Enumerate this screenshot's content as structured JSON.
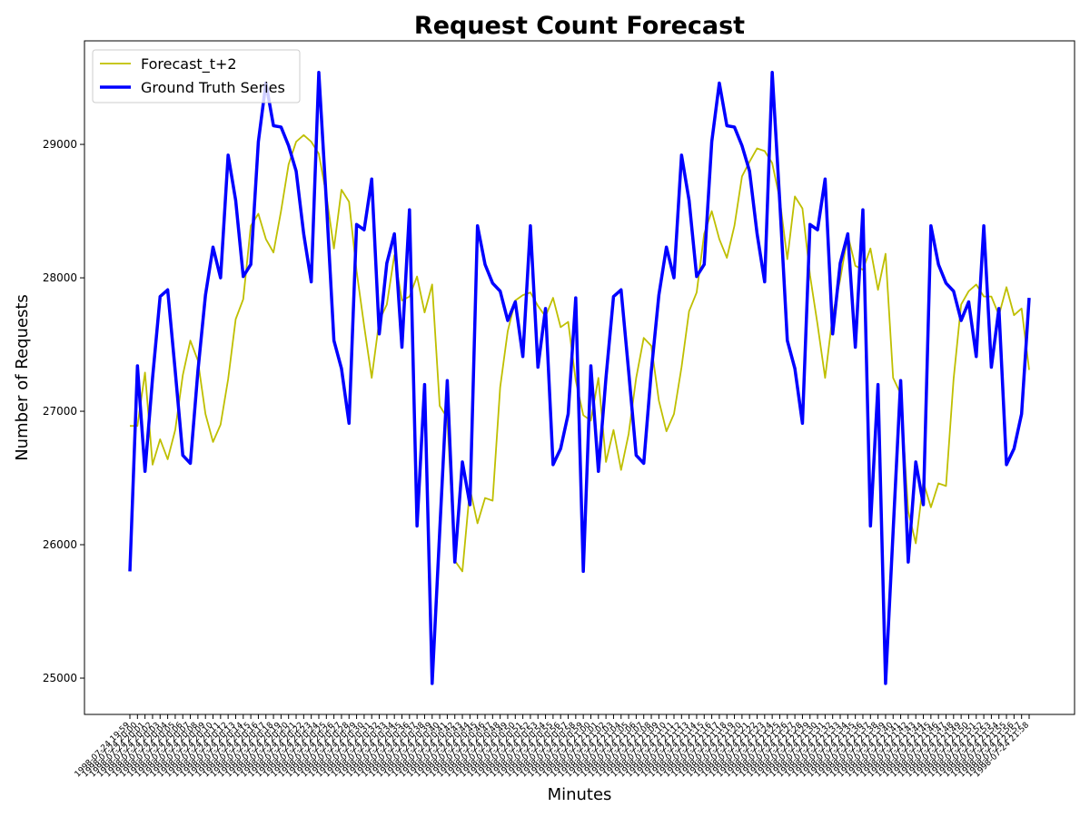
{
  "chart_data": {
    "type": "line",
    "title": "Request Count Forecast",
    "xlabel": "Minutes",
    "ylabel": "Number of Requests",
    "categories": [
      "1998-07-24 19:59",
      "1998-07-24 20:00",
      "1998-07-24 20:01",
      "1998-07-24 20:02",
      "1998-07-24 20:03",
      "1998-07-24 20:04",
      "1998-07-24 20:05",
      "1998-07-24 20:06",
      "1998-07-24 20:07",
      "1998-07-24 20:08",
      "1998-07-24 20:09",
      "1998-07-24 20:10",
      "1998-07-24 20:11",
      "1998-07-24 20:12",
      "1998-07-24 20:13",
      "1998-07-24 20:14",
      "1998-07-24 20:15",
      "1998-07-24 20:16",
      "1998-07-24 20:17",
      "1998-07-24 20:18",
      "1998-07-24 20:19",
      "1998-07-24 20:20",
      "1998-07-24 20:21",
      "1998-07-24 20:22",
      "1998-07-24 20:23",
      "1998-07-24 20:24",
      "1998-07-24 20:25",
      "1998-07-24 20:26",
      "1998-07-24 20:27",
      "1998-07-24 20:28",
      "1998-07-24 20:29",
      "1998-07-24 20:30",
      "1998-07-24 20:31",
      "1998-07-24 20:32",
      "1998-07-24 20:33",
      "1998-07-24 20:34",
      "1998-07-24 20:35",
      "1998-07-24 20:36",
      "1998-07-24 20:37",
      "1998-07-24 20:38",
      "1998-07-24 20:39",
      "1998-07-24 20:40",
      "1998-07-24 20:41",
      "1998-07-24 20:42",
      "1998-07-24 20:43",
      "1998-07-24 20:44",
      "1998-07-24 20:45",
      "1998-07-24 20:46",
      "1998-07-24 20:47",
      "1998-07-24 20:48",
      "1998-07-24 20:49",
      "1998-07-24 20:50",
      "1998-07-24 20:51",
      "1998-07-24 20:52",
      "1998-07-24 20:53",
      "1998-07-24 20:54",
      "1998-07-24 20:55",
      "1998-07-24 20:56",
      "1998-07-24 20:57",
      "1998-07-24 20:58",
      "1998-07-24 20:59",
      "1998-07-24 21:00",
      "1998-07-24 21:01",
      "1998-07-24 21:02",
      "1998-07-24 21:03",
      "1998-07-24 21:04",
      "1998-07-24 21:05",
      "1998-07-24 21:06",
      "1998-07-24 21:07",
      "1998-07-24 21:08",
      "1998-07-24 21:09",
      "1998-07-24 21:10",
      "1998-07-24 21:11",
      "1998-07-24 21:12",
      "1998-07-24 21:13",
      "1998-07-24 21:14",
      "1998-07-24 21:15",
      "1998-07-24 21:16",
      "1998-07-24 21:17",
      "1998-07-24 21:18",
      "1998-07-24 21:19",
      "1998-07-24 21:20",
      "1998-07-24 21:21",
      "1998-07-24 21:22",
      "1998-07-24 21:23",
      "1998-07-24 21:24",
      "1998-07-24 21:25",
      "1998-07-24 21:26",
      "1998-07-24 21:27",
      "1998-07-24 21:28",
      "1998-07-24 21:29",
      "1998-07-24 21:30",
      "1998-07-24 21:31",
      "1998-07-24 21:32",
      "1998-07-24 21:33",
      "1998-07-24 21:34",
      "1998-07-24 21:35",
      "1998-07-24 21:36",
      "1998-07-24 21:37",
      "1998-07-24 21:38",
      "1998-07-24 21:39",
      "1998-07-24 21:40",
      "1998-07-24 21:41",
      "1998-07-24 21:42",
      "1998-07-24 21:43",
      "1998-07-24 21:44",
      "1998-07-24 21:45",
      "1998-07-24 21:46",
      "1998-07-24 21:47",
      "1998-07-24 21:48",
      "1998-07-24 21:49",
      "1998-07-24 21:50",
      "1998-07-24 21:51",
      "1998-07-24 21:52",
      "1998-07-24 21:53",
      "1998-07-24 21:54",
      "1998-07-24 21:55",
      "1998-07-24 21:56",
      "1998-07-24 21:57",
      "1998-07-24 21:58"
    ],
    "series": [
      {
        "name": "Forecast_t+2",
        "color": "#bfbf00",
        "width": 1.8,
        "values": [
          26890,
          26890,
          27290,
          26600,
          26790,
          26640,
          26860,
          27270,
          27530,
          27380,
          26980,
          26770,
          26900,
          27240,
          27690,
          27840,
          28390,
          28480,
          28290,
          28190,
          28500,
          28850,
          29020,
          29070,
          29020,
          28930,
          28620,
          28220,
          28660,
          28570,
          28050,
          27640,
          27250,
          27680,
          27800,
          28170,
          27830,
          27860,
          28010,
          27740,
          27950,
          27040,
          26950,
          25880,
          25800,
          26420,
          26160,
          26350,
          26330,
          27180,
          27600,
          27830,
          27870,
          27890,
          27790,
          27710,
          27850,
          27630,
          27670,
          27230,
          26970,
          26930,
          27250,
          26620,
          26860,
          26560,
          26830,
          27250,
          27550,
          27490,
          27080,
          26850,
          26980,
          27330,
          27750,
          27890,
          28330,
          28500,
          28290,
          28150,
          28390,
          28760,
          28870,
          28970,
          28950,
          28860,
          28590,
          28140,
          28610,
          28520,
          28020,
          27650,
          27250,
          27720,
          27990,
          28320,
          28090,
          28060,
          28220,
          27910,
          28180,
          27250,
          27130,
          26250,
          26010,
          26470,
          26280,
          26460,
          26440,
          27240,
          27800,
          27900,
          27950,
          27860,
          27860,
          27720,
          27930,
          27720,
          27770,
          27310
        ]
      },
      {
        "name": "Ground Truth Series",
        "color": "#0000ff",
        "width": 3.5,
        "values": [
          25800,
          27340,
          26550,
          27250,
          27860,
          27910,
          27300,
          26670,
          26610,
          27300,
          27870,
          28230,
          28000,
          28920,
          28580,
          28010,
          28100,
          29020,
          29460,
          29140,
          29130,
          28990,
          28800,
          28330,
          27970,
          29540,
          28570,
          27530,
          27320,
          26910,
          28400,
          28360,
          28740,
          27580,
          28110,
          28330,
          27480,
          28510,
          26140,
          27200,
          24960,
          26100,
          27230,
          25870,
          26620,
          26300,
          28390,
          28100,
          27960,
          27900,
          27680,
          27820,
          27410,
          28390,
          27330,
          27770,
          26600,
          26720,
          26980,
          27850,
          25800,
          27340,
          26550,
          27250,
          27860,
          27910,
          27300,
          26670,
          26610,
          27300,
          27870,
          28230,
          28000,
          28920,
          28580,
          28010,
          28100,
          29020,
          29460,
          29140,
          29130,
          28990,
          28800,
          28330,
          27970,
          29540,
          28570,
          27530,
          27320,
          26910,
          28400,
          28360,
          28740,
          27580,
          28110,
          28330,
          27480,
          28510,
          26140,
          27200,
          24960,
          26100,
          27230,
          25870,
          26620,
          26300,
          28390,
          28100,
          27960,
          27900,
          27680,
          27820,
          27410,
          28390,
          27330,
          27770,
          26600,
          26720,
          26980,
          27850
        ]
      }
    ],
    "ylim": [
      24728,
      29776
    ],
    "yticks": [
      25000,
      26000,
      27000,
      28000,
      29000
    ],
    "grid": false,
    "legend": "upper left"
  }
}
